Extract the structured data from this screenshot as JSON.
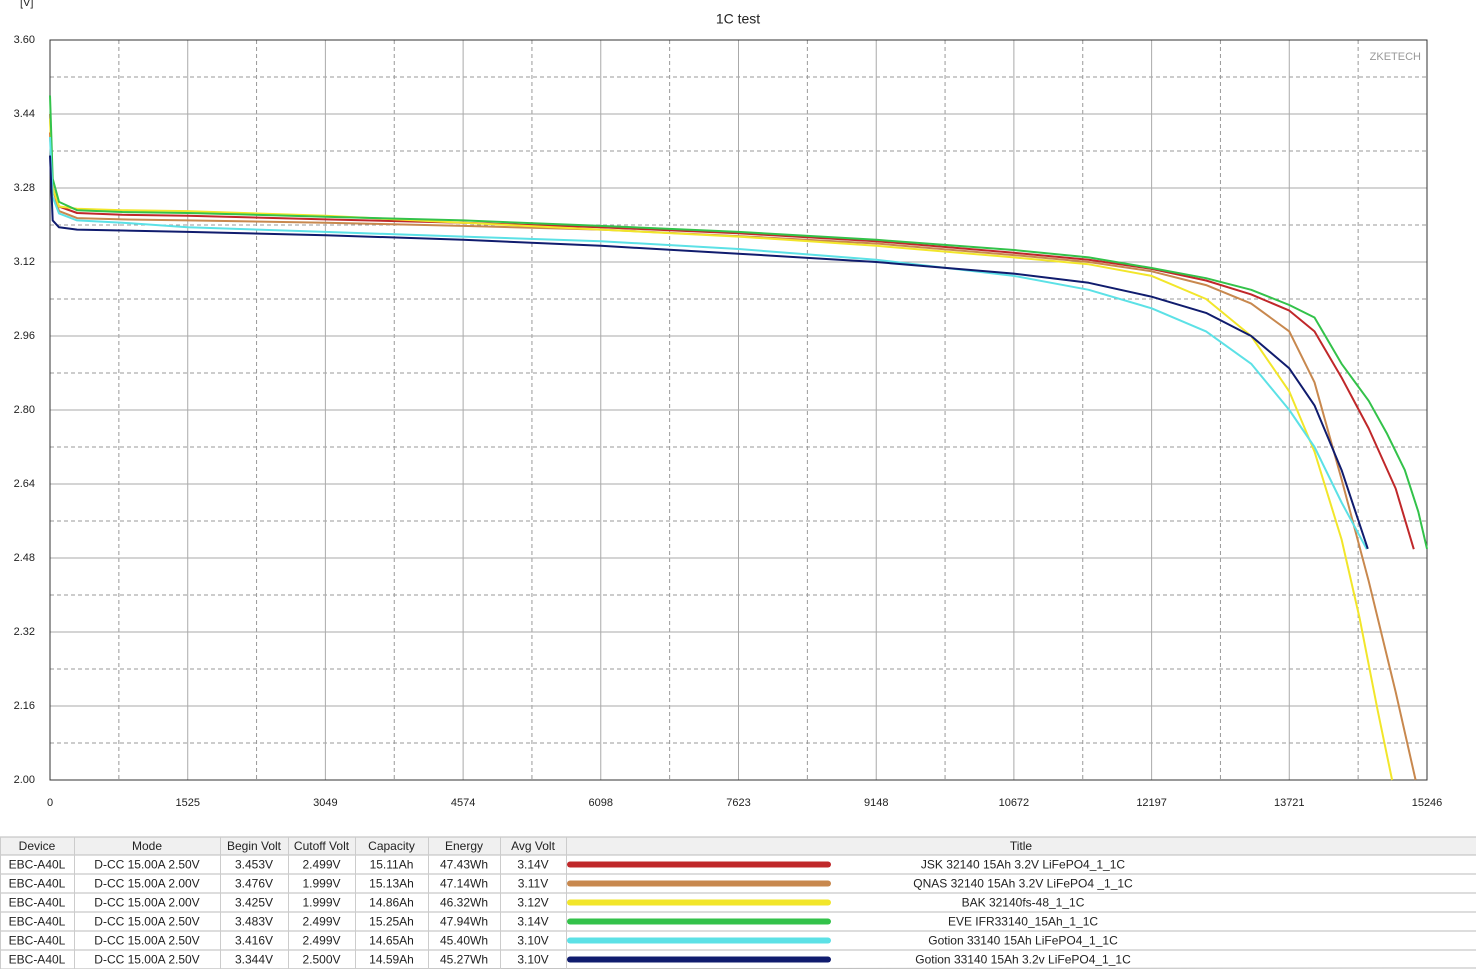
{
  "chart_data": {
    "type": "line",
    "title": "1C test",
    "y_label": "[V]",
    "watermark": "ZKETECH",
    "xlim": [
      0,
      15246
    ],
    "ylim": [
      2.0,
      3.6
    ],
    "xticks": [
      0,
      1525,
      3049,
      4574,
      6098,
      7623,
      9148,
      10672,
      12197,
      13721,
      15246
    ],
    "yticks": [
      {
        "value": 2.0,
        "label": "2.00"
      },
      2.16,
      2.32,
      2.48,
      2.64,
      {
        "value": 2.8,
        "label": "2.80"
      },
      2.96,
      3.12,
      3.28,
      3.44,
      {
        "value": 3.6,
        "label": "3.60"
      }
    ],
    "grid": true,
    "series": [
      {
        "name": "JSK 32140 15Ah 3.2V LiFePO4_1_1C",
        "color": "#c0282a",
        "x": [
          0,
          30,
          100,
          300,
          800,
          1525,
          3049,
          4574,
          6098,
          7623,
          9148,
          10672,
          11500,
          12197,
          12800,
          13300,
          13721,
          14000,
          14300,
          14600,
          14900,
          15100
        ],
        "values": [
          3.4,
          3.28,
          3.24,
          3.226,
          3.222,
          3.22,
          3.212,
          3.205,
          3.195,
          3.182,
          3.165,
          3.14,
          3.125,
          3.105,
          3.08,
          3.05,
          3.015,
          2.97,
          2.87,
          2.76,
          2.63,
          2.499
        ]
      },
      {
        "name": "QNAS 32140 15Ah 3.2V LiFePO4 _1_1C",
        "color": "#c8884e",
        "x": [
          0,
          30,
          100,
          300,
          800,
          1525,
          3049,
          4574,
          6098,
          7623,
          9148,
          10672,
          11500,
          12197,
          12800,
          13300,
          13721,
          14000,
          14300,
          14600,
          14900,
          15120
        ],
        "values": [
          3.44,
          3.28,
          3.23,
          3.215,
          3.212,
          3.21,
          3.205,
          3.198,
          3.19,
          3.176,
          3.16,
          3.135,
          3.12,
          3.1,
          3.07,
          3.03,
          2.97,
          2.86,
          2.65,
          2.43,
          2.19,
          2.0
        ]
      },
      {
        "name": "BAK 32140fs-48_1_1C",
        "color": "#f2e62a",
        "x": [
          0,
          30,
          100,
          300,
          800,
          1525,
          3049,
          4574,
          6098,
          7623,
          9148,
          10672,
          11500,
          12197,
          12800,
          13300,
          13721,
          14000,
          14300,
          14500,
          14700,
          14860
        ],
        "values": [
          3.43,
          3.28,
          3.24,
          3.235,
          3.232,
          3.23,
          3.22,
          3.205,
          3.19,
          3.175,
          3.155,
          3.13,
          3.115,
          3.09,
          3.04,
          2.96,
          2.84,
          2.71,
          2.52,
          2.35,
          2.15,
          2.0
        ]
      },
      {
        "name": "EVE IFR33140_15Ah_1_1C",
        "color": "#33c24a",
        "x": [
          0,
          30,
          100,
          300,
          800,
          1525,
          3049,
          4574,
          6098,
          7623,
          9148,
          10672,
          11500,
          12197,
          12800,
          13300,
          13721,
          14000,
          14300,
          14600,
          14800,
          15000,
          15150,
          15246
        ],
        "values": [
          3.48,
          3.3,
          3.25,
          3.232,
          3.228,
          3.226,
          3.218,
          3.21,
          3.198,
          3.185,
          3.168,
          3.146,
          3.13,
          3.107,
          3.085,
          3.06,
          3.027,
          3.0,
          2.9,
          2.82,
          2.75,
          2.67,
          2.58,
          2.5
        ]
      },
      {
        "name": "Gotion 33140 15Ah LiFePO4_1_1C",
        "color": "#5ce1e6",
        "x": [
          0,
          30,
          100,
          300,
          800,
          1525,
          3049,
          4574,
          6098,
          7623,
          9148,
          10672,
          11500,
          12197,
          12800,
          13300,
          13721,
          14000,
          14300,
          14580
        ],
        "values": [
          3.39,
          3.26,
          3.225,
          3.21,
          3.205,
          3.195,
          3.185,
          3.175,
          3.165,
          3.148,
          3.125,
          3.09,
          3.06,
          3.02,
          2.97,
          2.9,
          2.8,
          2.72,
          2.6,
          2.499
        ]
      },
      {
        "name": "Gotion 33140 15Ah 3.2v LiFePO4_1_1C",
        "color": "#101c6e",
        "x": [
          0,
          30,
          100,
          300,
          800,
          1525,
          3049,
          4574,
          6098,
          7623,
          9148,
          10672,
          11500,
          12197,
          12800,
          13300,
          13721,
          14000,
          14300,
          14590
        ],
        "values": [
          3.35,
          3.21,
          3.195,
          3.19,
          3.188,
          3.185,
          3.178,
          3.168,
          3.155,
          3.138,
          3.12,
          3.095,
          3.075,
          3.045,
          3.01,
          2.96,
          2.89,
          2.81,
          2.67,
          2.5
        ]
      }
    ]
  },
  "table": {
    "columns": [
      "Device",
      "Mode",
      "Begin Volt",
      "Cutoff Volt",
      "Capacity",
      "Energy",
      "Avg Volt",
      "Title"
    ],
    "rows": [
      [
        "EBC-A40L",
        "D-CC 15.00A 2.50V",
        "3.453V",
        "2.499V",
        "15.11Ah",
        "47.43Wh",
        "3.14V"
      ],
      [
        "EBC-A40L",
        "D-CC 15.00A 2.00V",
        "3.476V",
        "1.999V",
        "15.13Ah",
        "47.14Wh",
        "3.11V"
      ],
      [
        "EBC-A40L",
        "D-CC 15.00A 2.00V",
        "3.425V",
        "1.999V",
        "14.86Ah",
        "46.32Wh",
        "3.12V"
      ],
      [
        "EBC-A40L",
        "D-CC 15.00A 2.50V",
        "3.483V",
        "2.499V",
        "15.25Ah",
        "47.94Wh",
        "3.14V"
      ],
      [
        "EBC-A40L",
        "D-CC 15.00A 2.50V",
        "3.416V",
        "2.499V",
        "14.65Ah",
        "45.40Wh",
        "3.10V"
      ],
      [
        "EBC-A40L",
        "D-CC 15.00A 2.50V",
        "3.344V",
        "2.500V",
        "14.59Ah",
        "45.27Wh",
        "3.10V"
      ]
    ]
  }
}
